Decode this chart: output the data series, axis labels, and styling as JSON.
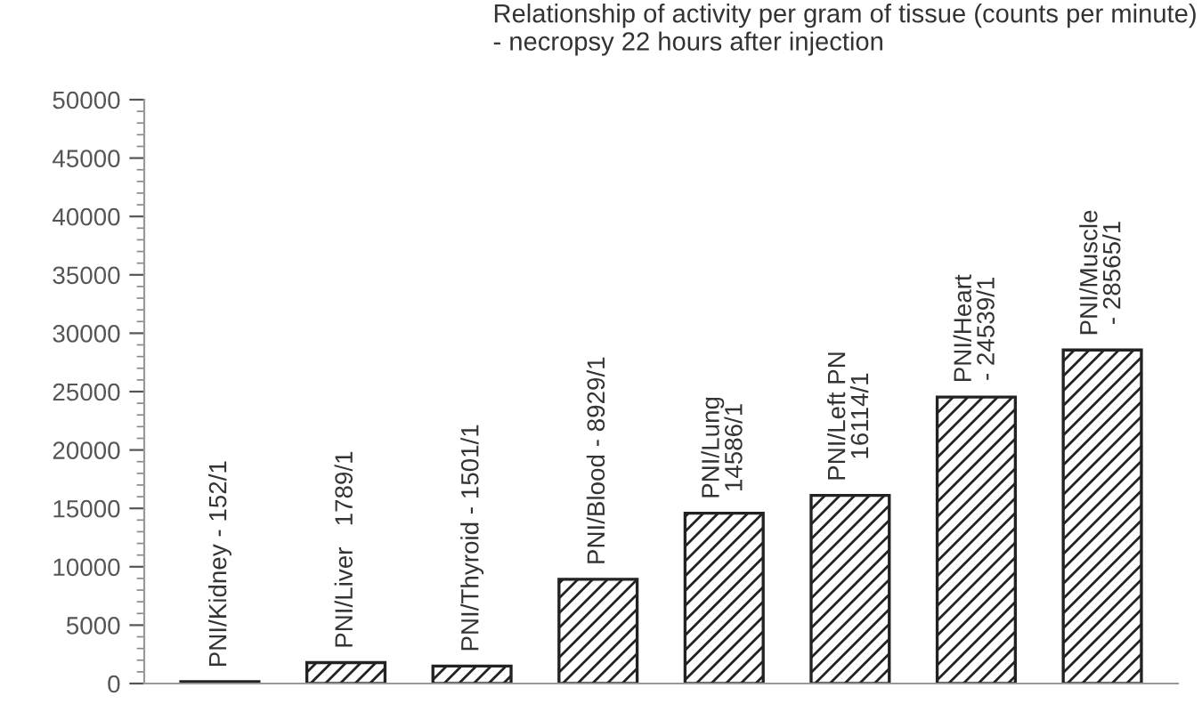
{
  "chart_data": {
    "type": "bar",
    "title": "Relationship of activity per gram of tissue (counts per minute)\n- necropsy 22 hours after injection",
    "categories": [
      null,
      null,
      null,
      null,
      null,
      null,
      null,
      null
    ],
    "values": [
      152,
      1789,
      1501,
      8929,
      14586,
      16114,
      24539,
      28565
    ],
    "value_labels": [
      "PNI/Kidney - 152/1",
      "PNI/Liver   1789/1",
      "PNI/Thyroid - 1501/1",
      "PNI/Blood - 8929/1",
      "PNI/Lung\n14586/1",
      "PNI/Left PN\n16114/1",
      "PNI/Heart\n- 24539/1",
      "PNI/Muscle\n- 28565/1"
    ],
    "color": "#222222",
    "ylim": [
      0,
      50000
    ],
    "yticks": [
      0,
      5000,
      10000,
      15000,
      20000,
      25000,
      30000,
      35000,
      40000,
      45000,
      50000
    ],
    "grid": false
  }
}
